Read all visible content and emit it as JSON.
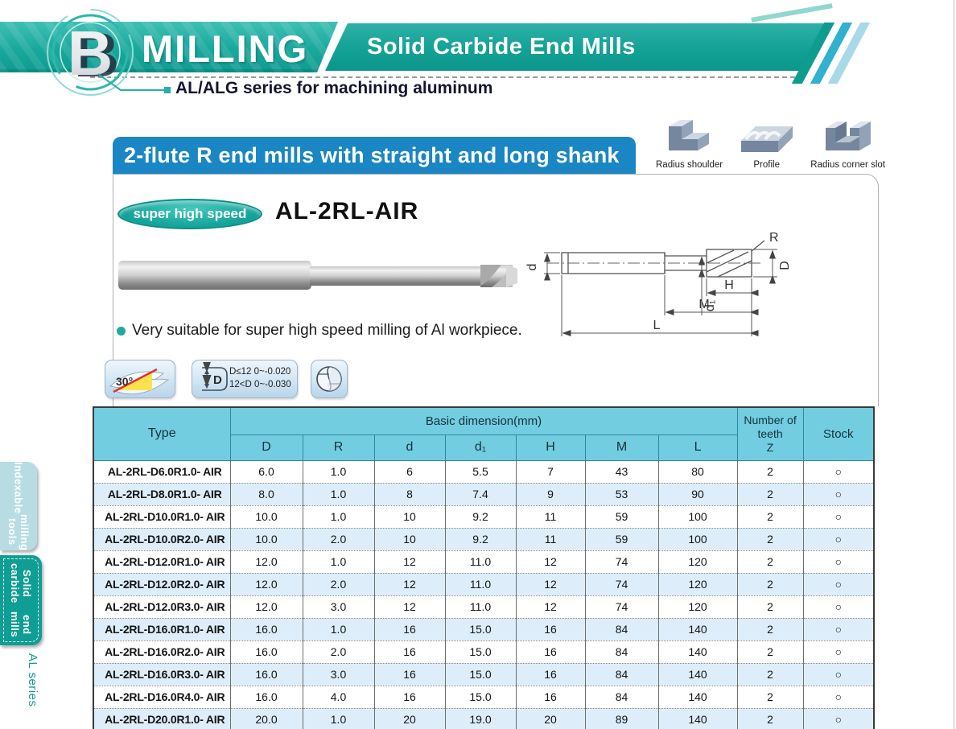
{
  "header": {
    "section_letter": "B",
    "title": "MILLING",
    "subtitle": "Solid Carbide End Mills",
    "series_note": "AL/ALG series for machining aluminum"
  },
  "banner": {
    "title": "2-flute R end mills with straight and long shank"
  },
  "applications": [
    {
      "label": "Radius shoulder"
    },
    {
      "label": "Profile"
    },
    {
      "label": "Radius corner slot"
    }
  ],
  "product": {
    "badge": "super high speed",
    "model": "AL-2RL-AIR",
    "feature": "Very suitable for super high speed milling of Al workpiece.",
    "diagram_labels": {
      "d": "d",
      "d1": "d₁",
      "H": "H",
      "M": "M",
      "L": "L",
      "R": "R",
      "D": "D"
    }
  },
  "spec_icons": {
    "helix_angle": "30°",
    "tolerance_symbol": "D",
    "tolerance_lines": [
      "D≤12  0~-0.020",
      "12<D  0~-0.030"
    ]
  },
  "table": {
    "header": {
      "type": "Type",
      "basic_dimension": "Basic dimension(mm)",
      "dims": [
        "D",
        "R",
        "d",
        "d₁",
        "H",
        "M",
        "L"
      ],
      "teeth_lines": [
        "Number of",
        "teeth",
        "Z"
      ],
      "stock": "Stock"
    },
    "rows": [
      {
        "type": "AL-2RL-D6.0R1.0- AIR",
        "D": "6.0",
        "R": "1.0",
        "d": "6",
        "d1": "5.5",
        "H": "7",
        "M": "43",
        "L": "80",
        "Z": "2",
        "stock": "○"
      },
      {
        "type": "AL-2RL-D8.0R1.0- AIR",
        "D": "8.0",
        "R": "1.0",
        "d": "8",
        "d1": "7.4",
        "H": "9",
        "M": "53",
        "L": "90",
        "Z": "2",
        "stock": "○"
      },
      {
        "type": "AL-2RL-D10.0R1.0- AIR",
        "D": "10.0",
        "R": "1.0",
        "d": "10",
        "d1": "9.2",
        "H": "11",
        "M": "59",
        "L": "100",
        "Z": "2",
        "stock": "○"
      },
      {
        "type": "AL-2RL-D10.0R2.0- AIR",
        "D": "10.0",
        "R": "2.0",
        "d": "10",
        "d1": "9.2",
        "H": "11",
        "M": "59",
        "L": "100",
        "Z": "2",
        "stock": "○"
      },
      {
        "type": "AL-2RL-D12.0R1.0- AIR",
        "D": "12.0",
        "R": "1.0",
        "d": "12",
        "d1": "11.0",
        "H": "12",
        "M": "74",
        "L": "120",
        "Z": "2",
        "stock": "○"
      },
      {
        "type": "AL-2RL-D12.0R2.0- AIR",
        "D": "12.0",
        "R": "2.0",
        "d": "12",
        "d1": "11.0",
        "H": "12",
        "M": "74",
        "L": "120",
        "Z": "2",
        "stock": "○"
      },
      {
        "type": "AL-2RL-D12.0R3.0- AIR",
        "D": "12.0",
        "R": "3.0",
        "d": "12",
        "d1": "11.0",
        "H": "12",
        "M": "74",
        "L": "120",
        "Z": "2",
        "stock": "○"
      },
      {
        "type": "AL-2RL-D16.0R1.0- AIR",
        "D": "16.0",
        "R": "1.0",
        "d": "16",
        "d1": "15.0",
        "H": "16",
        "M": "84",
        "L": "140",
        "Z": "2",
        "stock": "○"
      },
      {
        "type": "AL-2RL-D16.0R2.0- AIR",
        "D": "16.0",
        "R": "2.0",
        "d": "16",
        "d1": "15.0",
        "H": "16",
        "M": "84",
        "L": "140",
        "Z": "2",
        "stock": "○"
      },
      {
        "type": "AL-2RL-D16.0R3.0- AIR",
        "D": "16.0",
        "R": "3.0",
        "d": "16",
        "d1": "15.0",
        "H": "16",
        "M": "84",
        "L": "140",
        "Z": "2",
        "stock": "○"
      },
      {
        "type": "AL-2RL-D16.0R4.0- AIR",
        "D": "16.0",
        "R": "4.0",
        "d": "16",
        "d1": "15.0",
        "H": "16",
        "M": "84",
        "L": "140",
        "Z": "2",
        "stock": "○"
      },
      {
        "type": "AL-2RL-D20.0R1.0- AIR",
        "D": "20.0",
        "R": "1.0",
        "d": "20",
        "d1": "19.0",
        "H": "20",
        "M": "89",
        "L": "140",
        "Z": "2",
        "stock": "○"
      }
    ]
  },
  "sidebar": {
    "tabs": [
      {
        "lines": [
          "Indexable",
          "milling tools"
        ]
      },
      {
        "lines": [
          "Solid carbide",
          "end mills"
        ]
      }
    ],
    "series_label": "AL series"
  },
  "colors": {
    "teal": "#12a095",
    "banner_blue": "#1a86c3",
    "table_header": "#72cde0",
    "row_alt": "#ddeefa",
    "tab_pale": "#b7dde3",
    "tab_active": "#0f9e94"
  }
}
